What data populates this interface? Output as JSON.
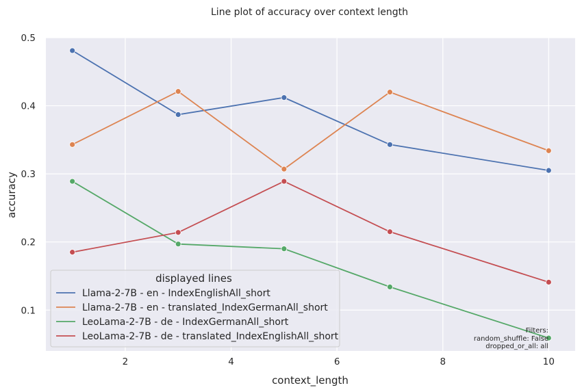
{
  "chart_data": {
    "type": "line",
    "title": "Line plot of accuracy over context length",
    "xlabel": "context_length",
    "ylabel": "accuracy",
    "xlim": [
      0.5,
      10.5
    ],
    "ylim": [
      0.04,
      0.5
    ],
    "xticks": [
      2,
      4,
      6,
      8,
      10
    ],
    "yticks": [
      0.1,
      0.2,
      0.3,
      0.4,
      0.5
    ],
    "grid": true,
    "legend_placement": "lower-left",
    "legend_title": "displayed lines",
    "x": [
      1,
      3,
      5,
      7,
      10
    ],
    "series": [
      {
        "name": "Llama-2-7B - en - IndexEnglishAll_short",
        "color": "#4c72b0",
        "values": [
          0.481,
          0.387,
          0.412,
          0.343,
          0.305
        ]
      },
      {
        "name": "Llama-2-7B - en - translated_IndexGermanAll_short",
        "color": "#dd8452",
        "values": [
          0.343,
          0.421,
          0.307,
          0.42,
          0.334
        ]
      },
      {
        "name": "LeoLama-2-7B - de - IndexGermanAll_short",
        "color": "#55a868",
        "values": [
          0.289,
          0.197,
          0.19,
          0.134,
          0.059
        ]
      },
      {
        "name": "LeoLama-2-7B - de - translated_IndexEnglishAll_short",
        "color": "#c44e52",
        "values": [
          0.185,
          0.214,
          0.289,
          0.215,
          0.141
        ]
      }
    ],
    "annotation": [
      "Filters:",
      "random_shuffle: False",
      "dropped_or_all: all"
    ]
  }
}
